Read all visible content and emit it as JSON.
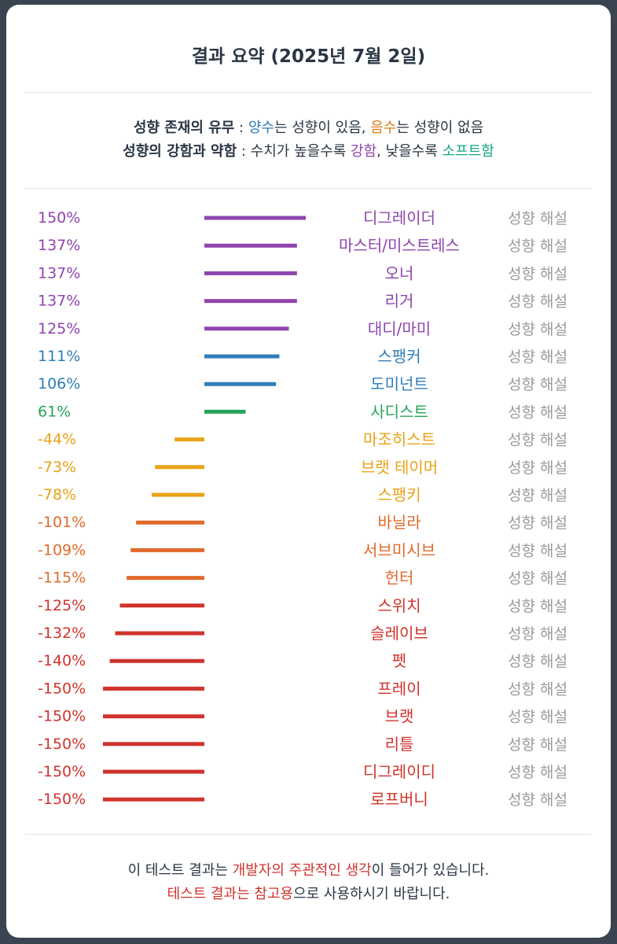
{
  "header": {
    "title": "결과 요약 (2025년 7월 2일)"
  },
  "legend": {
    "line1_label": "성향 존재의 유무",
    "line1_sep": " : ",
    "positive_word": "양수",
    "line1_mid": "는 성향이 있음, ",
    "negative_word": "음수",
    "line1_end": "는 성향이 없음",
    "line2_label": "성향의 강함과 약함",
    "line2_sep": " : 수치가 높을수록 ",
    "strong_word": "강함",
    "line2_mid": ", 낮을수록 ",
    "soft_word": "소프트함"
  },
  "chart_data": {
    "type": "bar",
    "orientation": "horizontal",
    "value_unit": "%",
    "categories": [
      "디그레이더",
      "마스터/미스트레스",
      "오너",
      "리거",
      "대디/마미",
      "스팽커",
      "도미넌트",
      "사디스트",
      "마조히스트",
      "브랫 테이머",
      "스팽키",
      "바닐라",
      "서브미시브",
      "헌터",
      "스위치",
      "슬레이브",
      "펫",
      "프레이",
      "브랫",
      "리틀",
      "디그레이디",
      "로프버니"
    ],
    "values": [
      150,
      137,
      137,
      137,
      125,
      111,
      106,
      61,
      -44,
      -73,
      -78,
      -101,
      -109,
      -115,
      -125,
      -132,
      -140,
      -150,
      -150,
      -150,
      -150,
      -150
    ],
    "value_labels": [
      "150%",
      "137%",
      "137%",
      "137%",
      "125%",
      "111%",
      "106%",
      "61%",
      "-44%",
      "-73%",
      "-78%",
      "-101%",
      "-109%",
      "-115%",
      "-125%",
      "-132%",
      "-140%",
      "-150%",
      "-150%",
      "-150%",
      "-150%",
      "-150%"
    ],
    "colors": [
      "#8e44ad",
      "#8e44ad",
      "#8e44ad",
      "#8e44ad",
      "#8e44ad",
      "#2e7eb8",
      "#2e7eb8",
      "#27a35a",
      "#e8a317",
      "#e8a317",
      "#e8a317",
      "#e06a2b",
      "#e06a2b",
      "#e06a2b",
      "#d0332c",
      "#d0332c",
      "#d0332c",
      "#d0332c",
      "#d0332c",
      "#d0332c",
      "#d0332c",
      "#d0332c"
    ],
    "link_label": "성향 해설",
    "xlim": [
      -150,
      150
    ]
  },
  "footer": {
    "line1_pre": "이 테스트 결과는 ",
    "line1_em": "개발자의 주관적인 생각",
    "line1_post": "이 들어가 있습니다.",
    "line2_em": "테스트 결과는 참고용",
    "line2_post": "으로 사용하시기 바랍니다."
  }
}
